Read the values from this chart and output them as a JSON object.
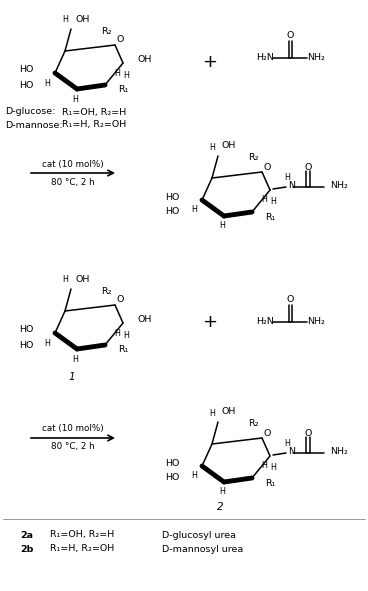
{
  "bg_color": "#ffffff",
  "line_color": "#000000",
  "text_color": "#000000",
  "fig_width": 3.68,
  "fig_height": 5.91,
  "fs": 6.8,
  "fs_small": 5.8,
  "fs_label": 7.5,
  "reaction1_label1": "cat (10 mol%)",
  "reaction1_label2": "80 °C, 2 h",
  "reaction2_label1": "cat (10 mol%)",
  "reaction2_label2": "80 °C, 2 h",
  "dglucose_label": "D-glucose:",
  "dmannose_label": "D-mannose:",
  "dglucose_r": "R₁=OH, R₂=H",
  "dmannose_r": "R₁=H, R₂=OH",
  "label_1": "1",
  "label_2": "2",
  "label_2a": "2a",
  "label_2b": "2b",
  "label_2a_r": "R₁=OH, R₂=H",
  "label_2b_r": "R₁=H, R₂=OH",
  "label_2a_name": "D-glucosyl urea",
  "label_2b_name": "D-mannosyl urea"
}
